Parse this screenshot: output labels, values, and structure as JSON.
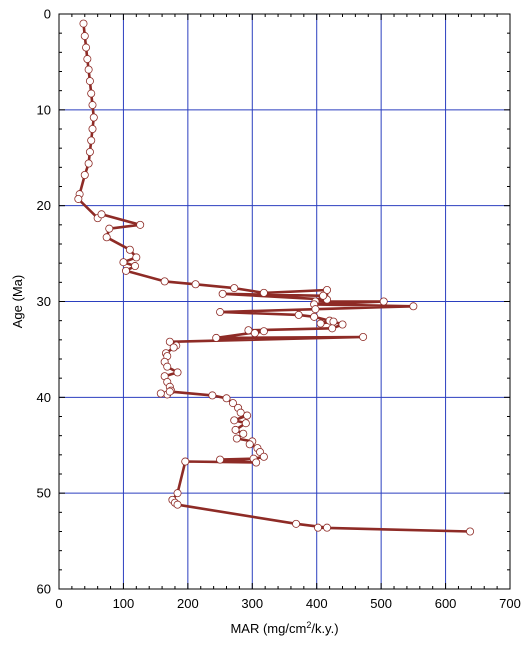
{
  "chart_data": {
    "type": "line",
    "xlabel_main": "MAR (mg/cm",
    "xlabel_sup": "2",
    "xlabel_tail": "/k.y.)",
    "ylabel": "Age (Ma)",
    "xlim": [
      0,
      700
    ],
    "ylim": [
      0,
      60
    ],
    "y_inverted": true,
    "x_ticks": [
      0,
      100,
      200,
      300,
      400,
      500,
      600,
      700
    ],
    "y_ticks": [
      0,
      10,
      20,
      30,
      40,
      50,
      60
    ],
    "x_tick_labels": [
      "0",
      "100",
      "200",
      "300",
      "400",
      "500",
      "600",
      "700"
    ],
    "y_tick_labels": [
      "0",
      "10",
      "20",
      "30",
      "40",
      "50",
      "60"
    ],
    "grid": true,
    "colors": {
      "grid": "#2b3fbf",
      "line": "#8e2b26",
      "marker_fill": "#ffffff",
      "marker_stroke": "#8e2b26"
    },
    "series": [
      {
        "x": [
          38,
          40,
          42,
          44,
          46,
          48,
          50,
          52,
          54,
          52,
          50,
          48,
          46,
          40,
          32,
          30,
          60,
          66,
          126,
          78,
          74,
          110,
          120,
          100,
          118,
          104,
          164,
          212,
          272,
          318,
          416,
          416,
          254,
          410,
          398,
          504,
          396,
          550,
          398,
          250,
          372,
          396,
          420,
          406,
          426,
          440,
          424,
          294,
          304,
          318,
          244,
          472,
          172,
          182,
          178,
          166,
          168,
          164,
          168,
          184,
          164,
          168,
          172,
          174,
          168,
          158,
          172,
          238,
          260,
          270,
          278,
          282,
          292,
          272,
          290,
          274,
          286,
          276,
          300,
          296,
          308,
          312,
          318,
          302,
          250,
          306,
          196,
          184,
          176,
          180,
          184,
          368,
          416,
          402,
          638
        ],
        "y": [
          1.0,
          2.3,
          3.5,
          4.7,
          5.8,
          7.0,
          8.3,
          9.5,
          10.8,
          12.0,
          13.2,
          14.4,
          15.6,
          16.8,
          18.8,
          19.3,
          21.3,
          20.9,
          22.0,
          22.4,
          23.3,
          24.6,
          25.4,
          25.9,
          26.3,
          26.8,
          27.9,
          28.2,
          28.6,
          29.1,
          28.8,
          29.8,
          29.2,
          29.4,
          30.0,
          30.0,
          30.3,
          30.5,
          30.8,
          31.1,
          31.4,
          31.6,
          32.0,
          32.3,
          32.1,
          32.4,
          32.8,
          33.0,
          33.3,
          33.1,
          33.8,
          33.7,
          34.2,
          34.6,
          34.8,
          35.4,
          35.7,
          36.3,
          36.8,
          37.4,
          37.8,
          38.4,
          38.9,
          39.3,
          39.7,
          39.6,
          39.4,
          39.8,
          40.1,
          40.6,
          41.1,
          41.6,
          41.9,
          42.4,
          42.7,
          43.4,
          43.8,
          44.3,
          44.6,
          44.9,
          45.3,
          45.7,
          46.2,
          46.4,
          46.5,
          46.8,
          46.7,
          50.0,
          50.7,
          51.0,
          51.2,
          53.2,
          53.6,
          53.6,
          54.0
        ]
      }
    ]
  }
}
